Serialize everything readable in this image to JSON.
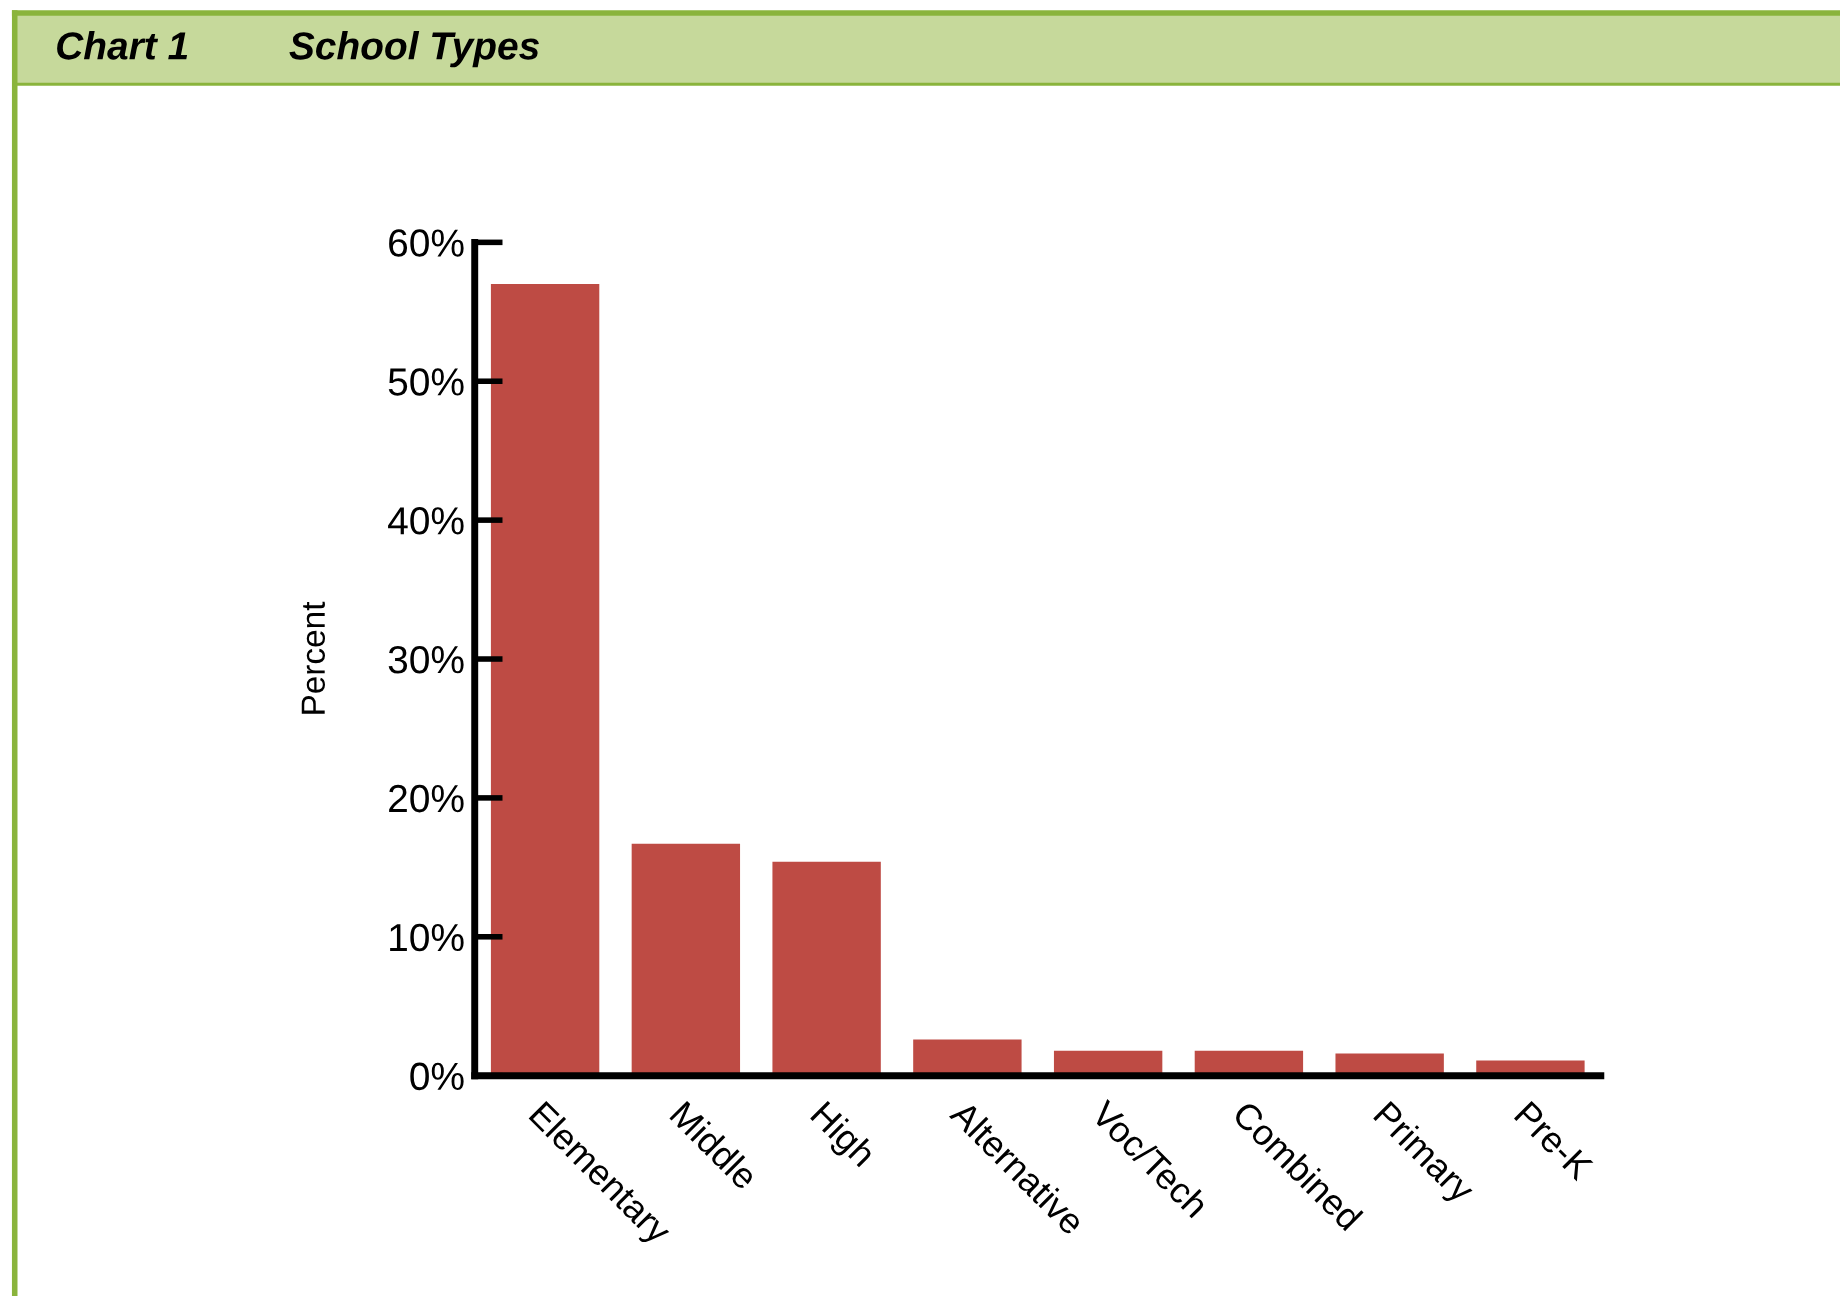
{
  "chart_data": {
    "type": "bar",
    "title": "School Types",
    "annotations": [
      "Chart 1"
    ],
    "ylabel": "Percent",
    "categories": [
      "Elementary",
      "Middle",
      "High",
      "Alternative",
      "Voc/Tech",
      "Combined",
      "Primary",
      "Pre-K"
    ],
    "values": [
      57.0,
      16.7,
      15.4,
      2.6,
      1.8,
      1.8,
      1.6,
      1.1
    ],
    "color": "#be4b44",
    "ylim": [
      0,
      60
    ],
    "yticks": [
      {
        "value": 0,
        "label": "0%"
      },
      {
        "value": 10,
        "label": "10%"
      },
      {
        "value": 20,
        "label": "20%"
      },
      {
        "value": 30,
        "label": "30%"
      },
      {
        "value": 40,
        "label": "40%"
      },
      {
        "value": 50,
        "label": "50%"
      },
      {
        "value": 60,
        "label": "60%"
      }
    ],
    "grid": false,
    "legend": false
  }
}
